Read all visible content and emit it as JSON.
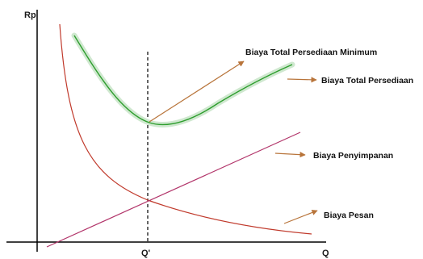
{
  "diagram": {
    "y_axis_label": "Rp",
    "x_axis_label": "Q",
    "q_star_label": "Q'",
    "labels": {
      "minimum_total_cost": "Biaya Total Persediaan Minimum",
      "total_cost": "Biaya Total Persediaan",
      "holding_cost": "Biaya Penyimpanan",
      "ordering_cost": "Biaya Pesan"
    },
    "colors": {
      "axis": "#000000",
      "total_cost_curve": "#2e9e2e",
      "total_cost_glow": "#cfe8cf",
      "ordering_cost_curve": "#c0392b",
      "holding_cost_line": "#b2356a",
      "arrow": "#b8743a",
      "dashed_line": "#000000"
    }
  }
}
